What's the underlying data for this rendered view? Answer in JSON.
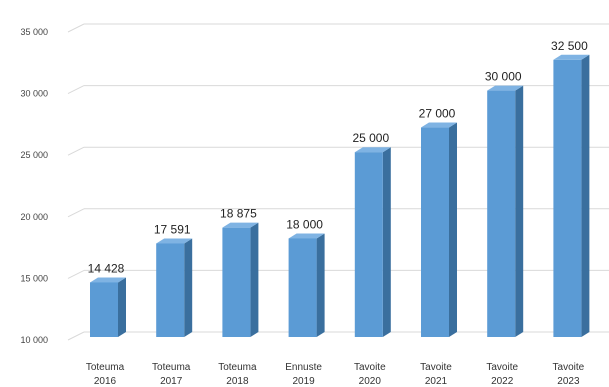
{
  "chart_data": {
    "type": "bar",
    "title": "",
    "xlabel": "",
    "ylabel": "",
    "ylim": [
      10000,
      35000
    ],
    "yticks": [
      10000,
      15000,
      20000,
      25000,
      30000,
      35000
    ],
    "ytick_labels": [
      "10 000",
      "15 000",
      "20 000",
      "25 000",
      "30 000",
      "35 000"
    ],
    "grid": true,
    "legend": "none",
    "style": "3d-column",
    "categories": [
      [
        "Toteuma",
        "2016"
      ],
      [
        "Toteuma",
        "2017"
      ],
      [
        "Toteuma",
        "2018"
      ],
      [
        "Ennuste",
        "2019"
      ],
      [
        "Tavoite",
        "2020"
      ],
      [
        "Tavoite",
        "2021"
      ],
      [
        "Tavoite",
        "2022"
      ],
      [
        "Tavoite",
        "2023"
      ]
    ],
    "values": [
      14428,
      17591,
      18875,
      18000,
      25000,
      27000,
      30000,
      32500
    ],
    "data_labels": [
      "14 428",
      "17 591",
      "18 875",
      "18 000",
      "25 000",
      "27 000",
      "30 000",
      "32 500"
    ],
    "colors": {
      "bar_front": "#5b9bd5",
      "bar_side": "#3a6f9e",
      "bar_top": "#7fb3e3",
      "grid": "#d9d9d9"
    }
  }
}
